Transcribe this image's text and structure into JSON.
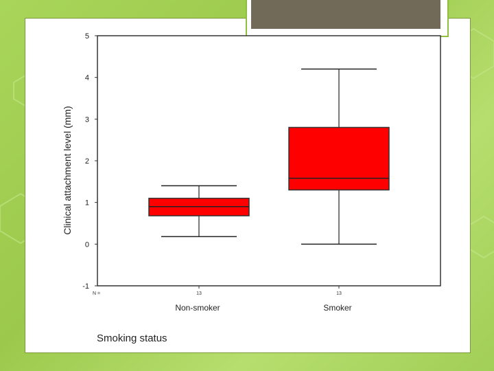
{
  "chart_data": {
    "type": "boxplot",
    "title": "",
    "xlabel": "Smoking status",
    "ylabel": "Clinical attachment level (mm)",
    "ylim": [
      -1,
      5
    ],
    "yticks": [
      -1,
      0,
      1,
      2,
      3,
      4,
      5
    ],
    "n_label": "N =",
    "grid": false,
    "categories": [
      "Non-smoker",
      "Smoker"
    ],
    "n_values": [
      "13",
      "13"
    ],
    "boxes": [
      {
        "category": "Non-smoker",
        "min": 0.18,
        "q1": 0.68,
        "median": 0.9,
        "q3": 1.1,
        "max": 1.4
      },
      {
        "category": "Smoker",
        "min": 0.0,
        "q1": 1.3,
        "median": 1.58,
        "q3": 2.8,
        "max": 4.2
      }
    ],
    "box_color": "#ff0000"
  }
}
